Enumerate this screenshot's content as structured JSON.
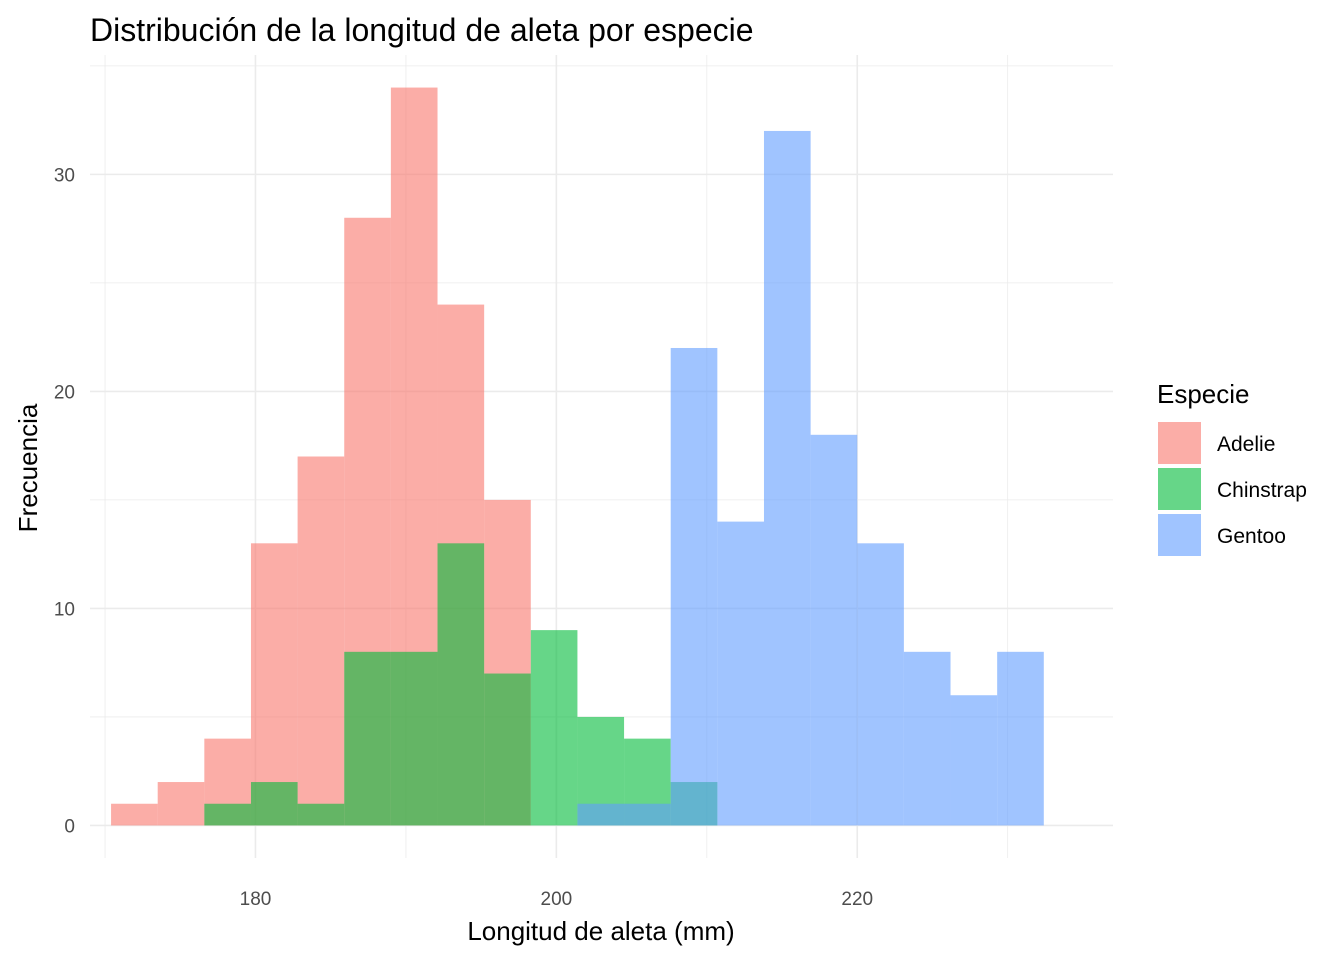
{
  "chart_data": {
    "type": "bar",
    "subtype": "overlapping-histogram",
    "title": "Distribución de la longitud de aleta por especie",
    "xlabel": "Longitud de aleta (mm)",
    "ylabel": "Frecuencia",
    "xlim": [
      169,
      237
    ],
    "ylim": [
      -1.5,
      35.5
    ],
    "x_ticks": [
      180,
      200,
      220
    ],
    "y_ticks": [
      0,
      10,
      20,
      30
    ],
    "grid": true,
    "bin_width": 3.1,
    "bin_start": 170.4,
    "legend": {
      "title": "Especie",
      "position": "right"
    },
    "series": [
      {
        "name": "Adelie",
        "color": "#F8766D",
        "values": [
          1,
          2,
          4,
          13,
          17,
          28,
          34,
          24,
          15,
          0,
          0,
          0,
          0,
          0,
          0,
          0,
          0,
          0,
          0,
          0
        ]
      },
      {
        "name": "Chinstrap",
        "color": "#00BA38",
        "values": [
          0,
          0,
          1,
          2,
          1,
          8,
          8,
          13,
          7,
          9,
          5,
          4,
          2,
          0,
          0,
          0,
          0,
          0,
          0,
          0
        ]
      },
      {
        "name": "Gentoo",
        "color": "#619CFF",
        "values": [
          0,
          0,
          0,
          0,
          0,
          0,
          0,
          0,
          0,
          0,
          1,
          1,
          22,
          14,
          32,
          18,
          13,
          8,
          6,
          8
        ]
      }
    ]
  }
}
